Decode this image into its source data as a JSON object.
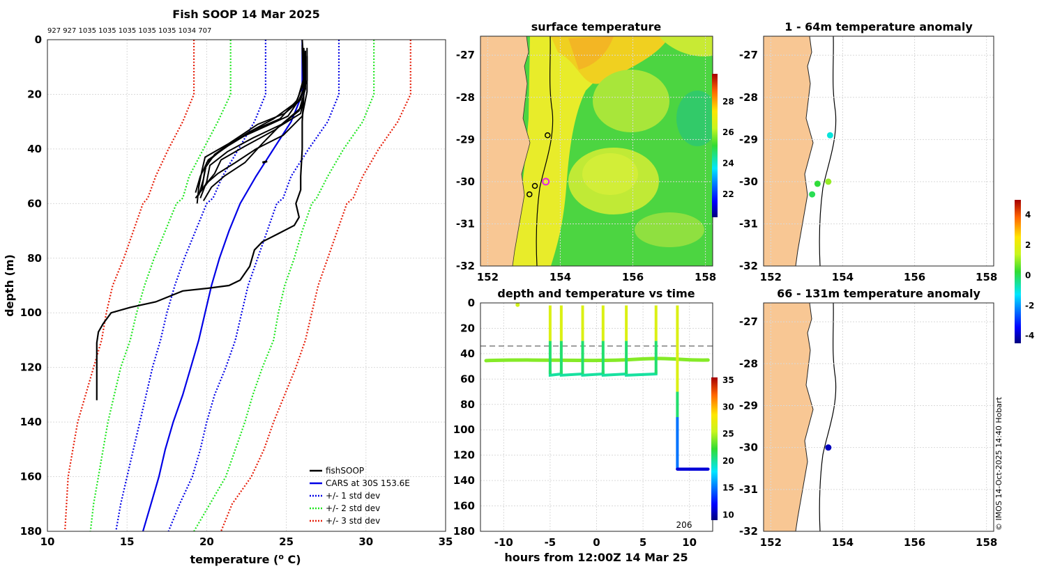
{
  "main_title": "Fish SOOP 14 Mar 2025",
  "counts_line": "927 927 1035 1035 1035 1035 1035 1034 707",
  "colors": {
    "land": "#f8c794",
    "fish": "#000000",
    "cars": "#0000e6",
    "std1": "#0000e6",
    "std2": "#1fe61f",
    "std3": "#e61f0a"
  },
  "chart_data": [
    {
      "id": "profile",
      "type": "line",
      "title": "Fish SOOP 14 Mar 2025",
      "xlabel": "temperature (",
      "xlabel_sup": "o",
      "xlabel_end": " C)",
      "ylabel": "depth (m)",
      "xlim": [
        10,
        35
      ],
      "ylim": [
        180,
        0
      ],
      "x_ticks": [
        "10",
        "15",
        "20",
        "25",
        "30",
        "35"
      ],
      "y_ticks": [
        "0",
        "20",
        "40",
        "60",
        "80",
        "100",
        "120",
        "140",
        "160",
        "180"
      ],
      "legend": [
        "fishSOOP",
        "CARS at 30S 153.6E",
        "+/- 1 std dev",
        "+/- 2 std dev",
        "+/- 3 std dev"
      ],
      "legend_position": "bottom-right",
      "series": {
        "cars": [
          [
            26,
            0
          ],
          [
            26,
            20
          ],
          [
            25.3,
            30
          ],
          [
            24.2,
            40
          ],
          [
            23.1,
            50
          ],
          [
            22.1,
            60
          ],
          [
            21.4,
            70
          ],
          [
            20.8,
            80
          ],
          [
            20.3,
            90
          ],
          [
            19.9,
            100
          ],
          [
            19.5,
            110
          ],
          [
            19,
            120
          ],
          [
            18.5,
            130
          ],
          [
            17.9,
            140
          ],
          [
            17.4,
            150
          ],
          [
            17,
            160
          ],
          [
            16.5,
            170
          ],
          [
            16,
            180
          ]
        ],
        "std_p1": [
          [
            28.3,
            0
          ],
          [
            28.3,
            20
          ],
          [
            27.6,
            30
          ],
          [
            26.4,
            40
          ],
          [
            25.3,
            50
          ],
          [
            24.8,
            58
          ],
          [
            24.4,
            60
          ],
          [
            23.8,
            70
          ],
          [
            23.2,
            80
          ],
          [
            22.6,
            90
          ],
          [
            22.2,
            100
          ],
          [
            21.8,
            110
          ],
          [
            21.2,
            120
          ],
          [
            20.5,
            130
          ],
          [
            20,
            140
          ],
          [
            19.6,
            150
          ],
          [
            19.1,
            160
          ],
          [
            18.3,
            170
          ],
          [
            17.6,
            180
          ]
        ],
        "std_m1": [
          [
            23.7,
            0
          ],
          [
            23.7,
            20
          ],
          [
            23,
            30
          ],
          [
            22,
            40
          ],
          [
            21,
            50
          ],
          [
            20.4,
            58
          ],
          [
            20,
            60
          ],
          [
            19.3,
            70
          ],
          [
            18.6,
            80
          ],
          [
            18,
            90
          ],
          [
            17.5,
            100
          ],
          [
            17.1,
            110
          ],
          [
            16.6,
            120
          ],
          [
            16.2,
            130
          ],
          [
            15.8,
            140
          ],
          [
            15.4,
            150
          ],
          [
            15,
            160
          ],
          [
            14.6,
            170
          ],
          [
            14.3,
            180
          ]
        ],
        "std_p2": [
          [
            30.5,
            0
          ],
          [
            30.5,
            20
          ],
          [
            29.8,
            30
          ],
          [
            28.6,
            40
          ],
          [
            27.6,
            50
          ],
          [
            26.9,
            58
          ],
          [
            26.6,
            60
          ],
          [
            26,
            70
          ],
          [
            25.5,
            80
          ],
          [
            24.9,
            90
          ],
          [
            24.5,
            100
          ],
          [
            24.2,
            110
          ],
          [
            23.5,
            120
          ],
          [
            22.9,
            130
          ],
          [
            22.4,
            140
          ],
          [
            21.8,
            150
          ],
          [
            21.2,
            160
          ],
          [
            20.2,
            170
          ],
          [
            19.2,
            180
          ]
        ],
        "std_m2": [
          [
            21.5,
            0
          ],
          [
            21.5,
            20
          ],
          [
            20.7,
            30
          ],
          [
            19.8,
            40
          ],
          [
            18.9,
            50
          ],
          [
            18.5,
            58
          ],
          [
            18.1,
            60
          ],
          [
            17.4,
            70
          ],
          [
            16.7,
            80
          ],
          [
            16.1,
            90
          ],
          [
            15.6,
            100
          ],
          [
            15.2,
            110
          ],
          [
            14.6,
            120
          ],
          [
            14.2,
            130
          ],
          [
            13.8,
            140
          ],
          [
            13.5,
            150
          ],
          [
            13.2,
            160
          ],
          [
            12.9,
            170
          ],
          [
            12.7,
            180
          ]
        ],
        "std_p3": [
          [
            32.8,
            0
          ],
          [
            32.8,
            20
          ],
          [
            32,
            30
          ],
          [
            30.8,
            40
          ],
          [
            29.8,
            50
          ],
          [
            29.2,
            58
          ],
          [
            28.8,
            60
          ],
          [
            28.2,
            70
          ],
          [
            27.6,
            80
          ],
          [
            27,
            90
          ],
          [
            26.6,
            100
          ],
          [
            26.2,
            110
          ],
          [
            25.6,
            120
          ],
          [
            24.9,
            130
          ],
          [
            24.2,
            140
          ],
          [
            23.6,
            150
          ],
          [
            22.8,
            160
          ],
          [
            21.6,
            170
          ],
          [
            20.9,
            180
          ]
        ],
        "std_m3": [
          [
            19.2,
            0
          ],
          [
            19.2,
            20
          ],
          [
            18.5,
            30
          ],
          [
            17.6,
            40
          ],
          [
            16.8,
            50
          ],
          [
            16.3,
            58
          ],
          [
            16,
            60
          ],
          [
            15.4,
            70
          ],
          [
            14.8,
            80
          ],
          [
            14.1,
            90
          ],
          [
            13.7,
            100
          ],
          [
            13.4,
            110
          ],
          [
            12.9,
            120
          ],
          [
            12.4,
            130
          ],
          [
            11.9,
            140
          ],
          [
            11.6,
            150
          ],
          [
            11.3,
            160
          ],
          [
            11.2,
            170
          ],
          [
            11.1,
            180
          ]
        ],
        "fish_deep": [
          [
            26,
            0
          ],
          [
            26.1,
            10
          ],
          [
            26.1,
            20
          ],
          [
            26,
            30
          ],
          [
            26,
            40
          ],
          [
            25.9,
            50
          ],
          [
            25.9,
            55
          ],
          [
            25.6,
            60
          ],
          [
            25.8,
            65
          ],
          [
            25.5,
            68
          ],
          [
            24.5,
            71
          ],
          [
            23.5,
            74
          ],
          [
            23,
            77
          ],
          [
            22.7,
            83
          ],
          [
            22.1,
            88
          ],
          [
            21.4,
            90
          ],
          [
            20.1,
            91
          ],
          [
            18.5,
            92
          ],
          [
            16.8,
            96
          ],
          [
            15.2,
            98
          ],
          [
            14,
            100
          ],
          [
            13.5,
            104
          ],
          [
            13.2,
            107
          ],
          [
            13.1,
            111
          ],
          [
            13.1,
            120
          ],
          [
            13.1,
            132
          ]
        ],
        "fish_casts": [
          [
            [
              26.2,
              5
            ],
            [
              26.2,
              15
            ],
            [
              25.9,
              22
            ],
            [
              24.9,
              27
            ],
            [
              23.2,
              31
            ],
            [
              21.4,
              38
            ],
            [
              19.9,
              43
            ],
            [
              19.7,
              48
            ],
            [
              19.5,
              54
            ],
            [
              19.4,
              60
            ]
          ],
          [
            [
              26.1,
              4
            ],
            [
              26.1,
              14
            ],
            [
              25.7,
              22
            ],
            [
              24.6,
              29
            ],
            [
              23,
              33
            ],
            [
              21.3,
              39
            ],
            [
              20.1,
              44
            ],
            [
              19.6,
              50
            ],
            [
              19.3,
              56
            ]
          ],
          [
            [
              26.3,
              3
            ],
            [
              26.3,
              15
            ],
            [
              25.8,
              22
            ],
            [
              25.1,
              28
            ],
            [
              23.6,
              32
            ],
            [
              21.7,
              37
            ],
            [
              20.5,
              42
            ],
            [
              19.9,
              47
            ],
            [
              19.7,
              55
            ]
          ],
          [
            [
              26,
              2
            ],
            [
              26.1,
              16
            ],
            [
              25.6,
              23
            ],
            [
              24.2,
              29
            ],
            [
              22.6,
              34
            ],
            [
              21,
              40
            ],
            [
              20,
              45
            ],
            [
              19.8,
              51
            ],
            [
              19.5,
              57
            ]
          ],
          [
            [
              26.2,
              4
            ],
            [
              26.2,
              17
            ],
            [
              25.9,
              25
            ],
            [
              24.7,
              31
            ],
            [
              22.9,
              36
            ],
            [
              21.3,
              41
            ],
            [
              20.2,
              46
            ],
            [
              20,
              52
            ],
            [
              19.6,
              58
            ]
          ],
          [
            [
              26.1,
              3
            ],
            [
              26.2,
              18
            ],
            [
              25.8,
              26
            ],
            [
              24.3,
              33
            ],
            [
              22.4,
              39
            ],
            [
              20.9,
              44
            ],
            [
              20.5,
              49
            ],
            [
              19.8,
              54
            ]
          ],
          [
            [
              26.3,
              6
            ],
            [
              26.3,
              19
            ],
            [
              26,
              28
            ],
            [
              24.8,
              35
            ],
            [
              23.1,
              40
            ],
            [
              21.8,
              45
            ],
            [
              20.7,
              49
            ],
            [
              20.1,
              52
            ],
            [
              19.3,
              58
            ]
          ],
          [
            [
              26,
              3
            ],
            [
              26.1,
              20
            ],
            [
              25.9,
              27
            ],
            [
              24.5,
              32
            ],
            [
              23.5,
              38
            ],
            [
              22.4,
              45
            ],
            [
              21.1,
              50
            ],
            [
              20.3,
              54
            ],
            [
              19.8,
              59
            ]
          ]
        ]
      }
    },
    {
      "id": "surface",
      "type": "heatmap",
      "title": "surface temperature",
      "x_ticks": [
        "152",
        "154",
        "156",
        "158"
      ],
      "y_ticks": [
        "-27",
        "-28",
        "-29",
        "-30",
        "-31",
        "-32"
      ],
      "xlim": [
        152,
        158
      ],
      "ylim": [
        -32,
        -26.5
      ],
      "colorbar_ticks": [
        "28",
        "26",
        "24",
        "22"
      ],
      "colorbar_range": [
        20.5,
        29.8
      ],
      "stations": [
        {
          "lon": 153.6,
          "lat": -30.0,
          "kind": "current"
        },
        {
          "lon": 153.65,
          "lat": -28.9
        },
        {
          "lon": 153.3,
          "lat": -30.1
        },
        {
          "lon": 153.15,
          "lat": -30.3
        }
      ]
    },
    {
      "id": "anom_shallow",
      "type": "scatter",
      "title": "1 - 64m temperature anomaly",
      "x_ticks": [
        "152",
        "154",
        "156",
        "158"
      ],
      "y_ticks": [
        "-27",
        "-28",
        "-29",
        "-30",
        "-31",
        "-32"
      ],
      "points": [
        {
          "lon": 153.65,
          "lat": -28.9,
          "anom": -1
        },
        {
          "lon": 153.6,
          "lat": -30.0,
          "anom": 1
        },
        {
          "lon": 153.3,
          "lat": -30.05,
          "anom": 0.2
        },
        {
          "lon": 153.15,
          "lat": -30.3,
          "anom": 0
        }
      ]
    },
    {
      "id": "anom_deep",
      "type": "scatter",
      "title": "66 - 131m temperature anomaly",
      "x_ticks": [
        "152",
        "154",
        "156",
        "158"
      ],
      "y_ticks": [
        "-27",
        "-28",
        "-29",
        "-30",
        "-31",
        "-32"
      ],
      "points": [
        {
          "lon": 153.6,
          "lat": -30.0,
          "anom": -4
        }
      ]
    },
    {
      "id": "anomaly_colorbar",
      "type": "colorbar",
      "range": [
        -4.5,
        5
      ],
      "ticks": [
        "4",
        "2",
        "0",
        "-2",
        "-4"
      ]
    },
    {
      "id": "time_depth",
      "type": "scatter",
      "title": "depth and temperature vs time",
      "xlabel": "hours from 12:00Z 14 Mar 25",
      "xlim": [
        -12.5,
        12.5
      ],
      "ylim": [
        180,
        0
      ],
      "x_ticks": [
        "-10",
        "-5",
        "0",
        "5",
        "10"
      ],
      "y_ticks": [
        "0",
        "20",
        "40",
        "60",
        "80",
        "100",
        "120",
        "140",
        "160",
        "180"
      ],
      "colorbar_ticks": [
        "35",
        "30",
        "25",
        "20",
        "15",
        "10"
      ],
      "colorbar_range": [
        9,
        35.5
      ],
      "dashed_depths": [
        34
      ],
      "annotation": "206",
      "cast_times": [
        -5,
        -3.8,
        -1.5,
        0.7,
        3.2,
        6.4
      ],
      "surface_level": 45,
      "bottom_level": 56,
      "deep_cast": {
        "t": 8.7,
        "depth": 131,
        "end": 12
      }
    }
  ],
  "credit": "© IMOS 14-Oct-2025 14:40 Hobart"
}
